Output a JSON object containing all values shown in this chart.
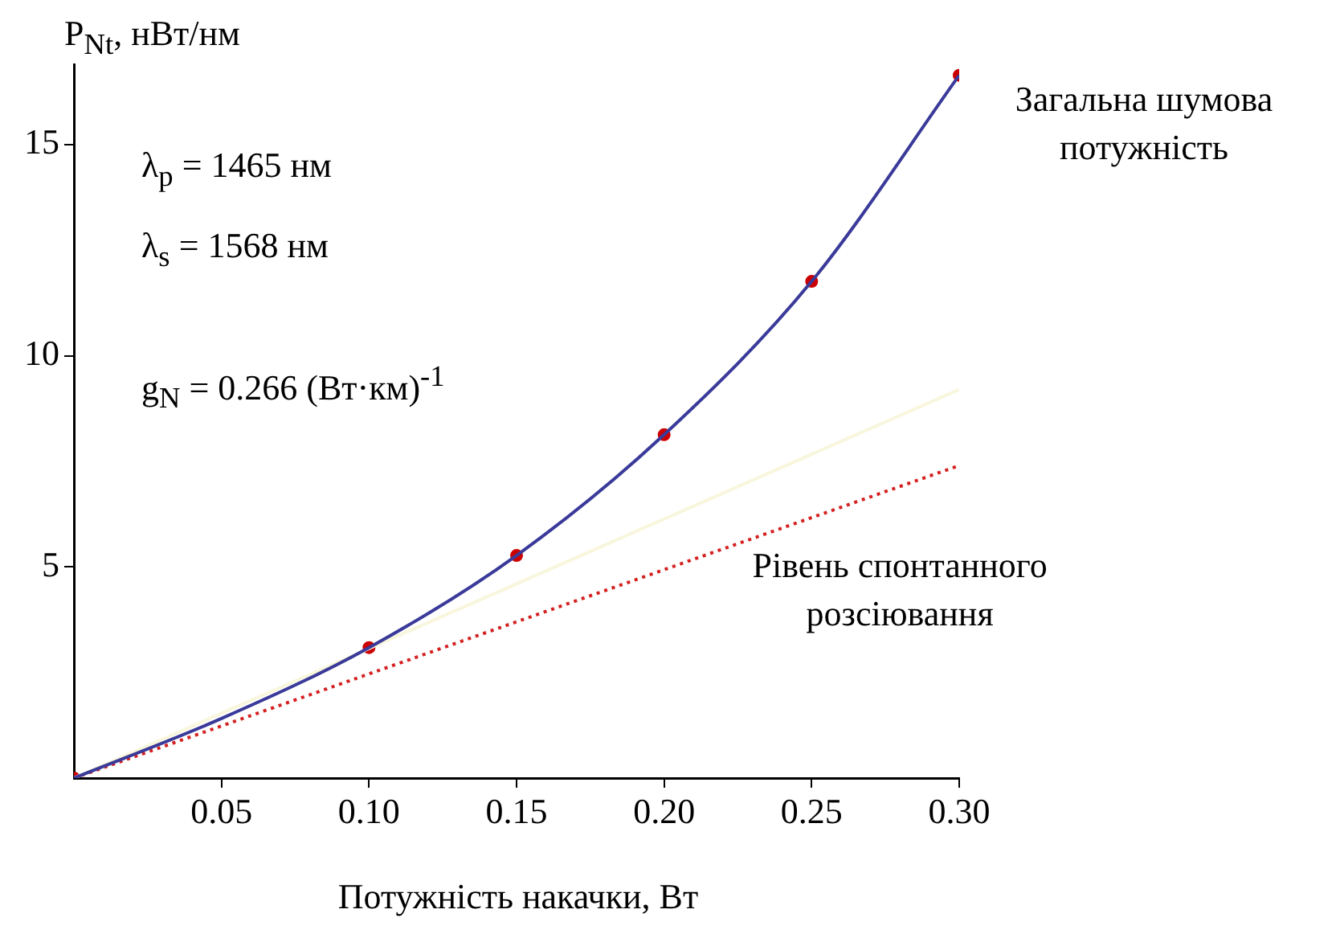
{
  "chart_data": {
    "type": "line",
    "xlabel": "Потужність накачки, Вт",
    "ylabel": "P$_{Nt}$, нВт/нм",
    "xlim": [
      0,
      0.3
    ],
    "ylim": [
      0,
      16.9
    ],
    "xticks": [
      0.05,
      {
        "value": 0.1,
        "label": "0.10"
      },
      0.15,
      {
        "value": 0.2,
        "label": "0.20"
      },
      0.25,
      {
        "value": 0.3,
        "label": "0.30"
      }
    ],
    "yticks": [
      5,
      10,
      15
    ],
    "grid": false,
    "legend": false,
    "series": [
      {
        "type": "line",
        "color": "#3a3a9a",
        "x": [
          0,
          0.05,
          0.1,
          0.15,
          0.2,
          0.25,
          0.3
        ],
        "values": [
          0,
          1.41,
          3.09,
          5.27,
          8.13,
          11.76,
          16.64
        ],
        "marker": "none",
        "line_style": "solid"
      },
      {
        "type": "line",
        "color": "#f8f6dc",
        "x": [
          0,
          0.3
        ],
        "values": [
          0,
          9.2
        ],
        "marker": "none",
        "line_style": "solid"
      },
      {
        "type": "line",
        "color": "#d42020",
        "x": [
          0,
          0.3
        ],
        "values": [
          0,
          7.4
        ],
        "marker": "none",
        "line_style": "dotted"
      },
      {
        "type": "scatter",
        "color": "#cc0000",
        "x": [
          0,
          0.1,
          0.15,
          0.2,
          0.25,
          0.3
        ],
        "values": [
          0,
          3.09,
          5.27,
          8.13,
          11.76,
          16.64
        ],
        "marker": "circle"
      }
    ],
    "annotations": [
      "λ$_{p}$ = 1465 нм",
      "λ$_{s}$ = 1568 нм",
      "g$_{N}$ = 0.266 (Вт·км)$^{-1}$",
      {
        "text": "Загальна шумова потужність",
        "x": 0.3,
        "y": 16.64
      },
      {
        "text": "Рівень спонтанного розсіювання",
        "x": 0.22,
        "y": 5.6
      }
    ]
  }
}
